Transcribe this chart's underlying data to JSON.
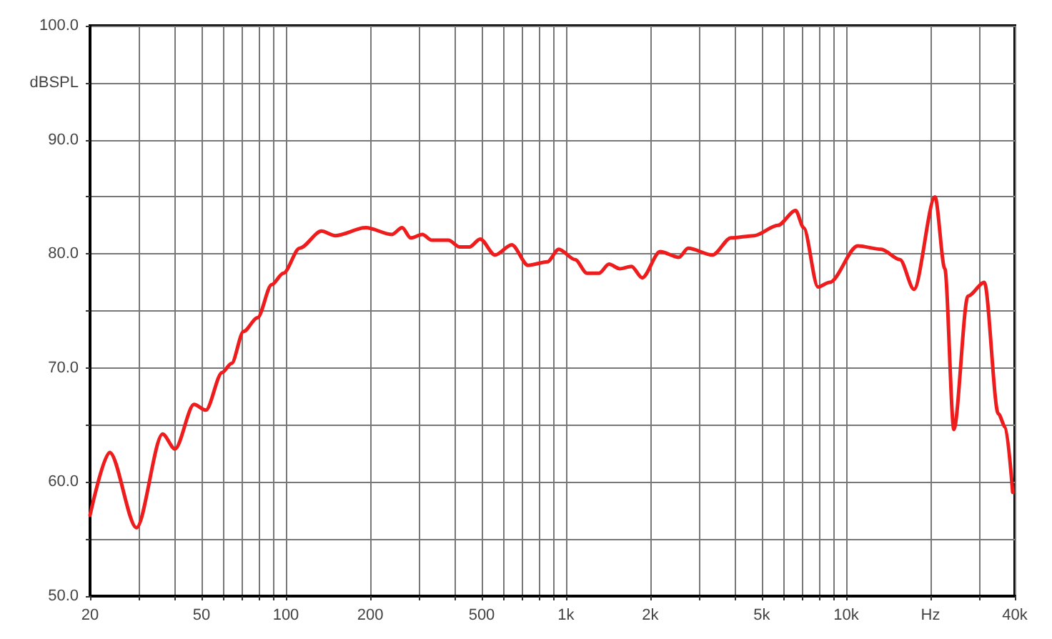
{
  "chart_data": {
    "type": "line",
    "x": [
      20,
      23.5,
      29.3,
      36.3,
      40.2,
      47,
      51.8,
      59.2,
      64,
      70.6,
      79.2,
      89,
      98,
      112,
      134,
      150,
      193,
      239,
      260,
      279,
      307,
      332,
      380,
      418,
      452,
      494,
      558,
      640,
      732,
      857,
      942,
      1078,
      1188,
      1310,
      1424,
      1555,
      1713,
      1870,
      2166,
      2528,
      2730,
      3332,
      3880,
      4700,
      5700,
      6600,
      7050,
      7930,
      8730,
      11000,
      13330,
      15560,
      17460,
      20760,
      22500,
      24240,
      27200,
      31140,
      34900,
      37000,
      39300
    ],
    "series": [
      {
        "color": "#ee1c1c",
        "values": [
          57.1,
          62.6,
          56,
          64.2,
          62.9,
          66.8,
          66.3,
          69.6,
          70.4,
          73.2,
          74.4,
          77.3,
          78.3,
          80.5,
          82,
          81.6,
          82.3,
          81.7,
          82.3,
          81.4,
          81.7,
          81.2,
          81.2,
          80.6,
          80.6,
          81.3,
          79.9,
          80.8,
          79,
          79.3,
          80.4,
          79.5,
          78.3,
          78.3,
          79.1,
          78.7,
          78.9,
          77.9,
          80.2,
          79.7,
          80.5,
          79.9,
          81.4,
          81.6,
          82.5,
          83.8,
          82.3,
          77.1,
          77.5,
          80.7,
          80.4,
          79.5,
          76.9,
          85,
          78.7,
          64.6,
          76.3,
          77.5,
          66,
          64.8,
          59.1
        ]
      }
    ],
    "log": "x",
    "grid": true,
    "marker": "none",
    "line_style": "solid",
    "xlim": [
      20,
      40000
    ],
    "xticks": [
      20,
      {
        "value": 30,
        "label": null
      },
      {
        "value": 40,
        "label": null
      },
      50,
      {
        "value": 60,
        "label": null
      },
      {
        "value": 70,
        "label": null
      },
      {
        "value": 80,
        "label": null
      },
      {
        "value": 90,
        "label": null
      },
      100,
      200,
      {
        "value": 300,
        "label": null
      },
      {
        "value": 400,
        "label": null
      },
      500,
      {
        "value": 600,
        "label": null
      },
      {
        "value": 700,
        "label": null
      },
      {
        "value": 800,
        "label": null
      },
      {
        "value": 900,
        "label": null
      },
      {
        "value": 1000,
        "label": "1k"
      },
      {
        "value": 2000,
        "label": "2k"
      },
      {
        "value": 3000,
        "label": null
      },
      {
        "value": 4000,
        "label": null
      },
      {
        "value": 5000,
        "label": "5k"
      },
      {
        "value": 6000,
        "label": null
      },
      {
        "value": 7000,
        "label": null
      },
      {
        "value": 8000,
        "label": null
      },
      {
        "value": 9000,
        "label": null
      },
      {
        "value": 10000,
        "label": "10k"
      },
      {
        "value": 20000,
        "label": "Hz"
      },
      {
        "value": 30000,
        "label": null
      },
      {
        "value": 40000,
        "label": "40k"
      }
    ],
    "ylim": [
      50,
      100
    ],
    "yticks": [
      {
        "value": 50,
        "label": "50.0"
      },
      {
        "value": 55,
        "label": null
      },
      {
        "value": 60,
        "label": "60.0"
      },
      {
        "value": 65,
        "label": null
      },
      {
        "value": 70,
        "label": "70.0"
      },
      {
        "value": 75,
        "label": null
      },
      {
        "value": 80,
        "label": "80.0"
      },
      {
        "value": 85,
        "label": null
      },
      {
        "value": 90,
        "label": "90.0"
      },
      {
        "value": 95,
        "label": "dBSPL"
      },
      {
        "value": 100,
        "label": "100.0"
      }
    ]
  }
}
